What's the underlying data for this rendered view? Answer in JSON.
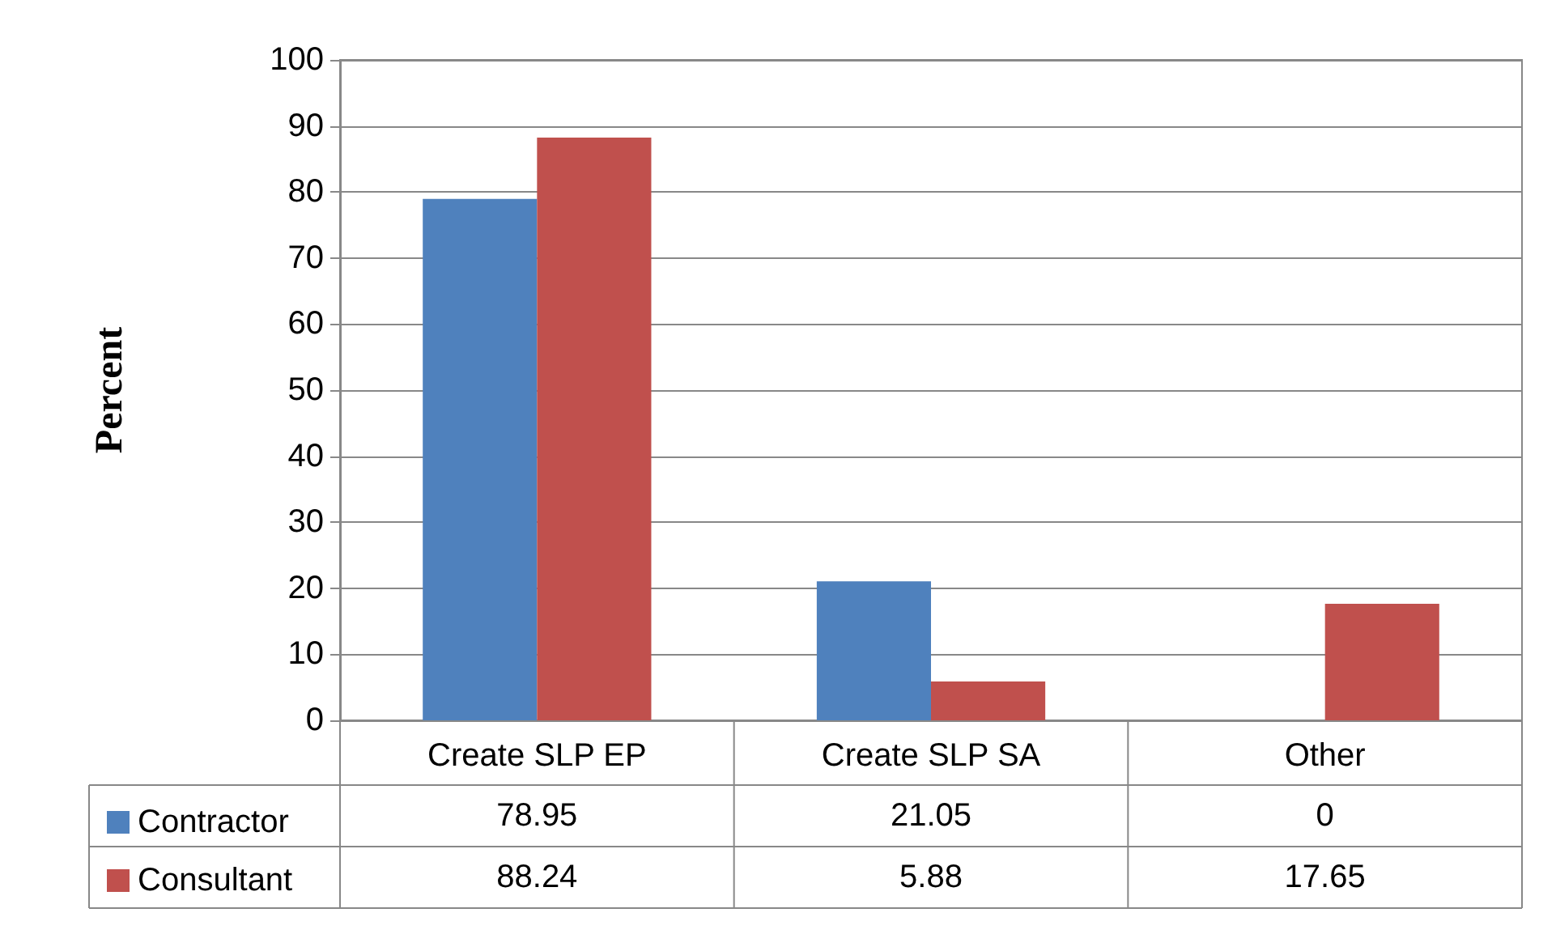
{
  "chart_data": {
    "type": "bar",
    "ylabel": "Percent",
    "categories": [
      "Create SLP EP",
      "Create SLP SA",
      "Other"
    ],
    "series": [
      {
        "name": "Contractor",
        "color": "#4f81bd",
        "values": [
          78.95,
          21.05,
          0
        ]
      },
      {
        "name": "Consultant",
        "color": "#c0504d",
        "values": [
          88.24,
          5.88,
          17.65
        ]
      }
    ],
    "ylim": [
      0,
      100
    ],
    "yticks": [
      0,
      10,
      20,
      30,
      40,
      50,
      60,
      70,
      80,
      90,
      100
    ],
    "grid": "y",
    "legend": "bottom left",
    "data_labels": true
  }
}
